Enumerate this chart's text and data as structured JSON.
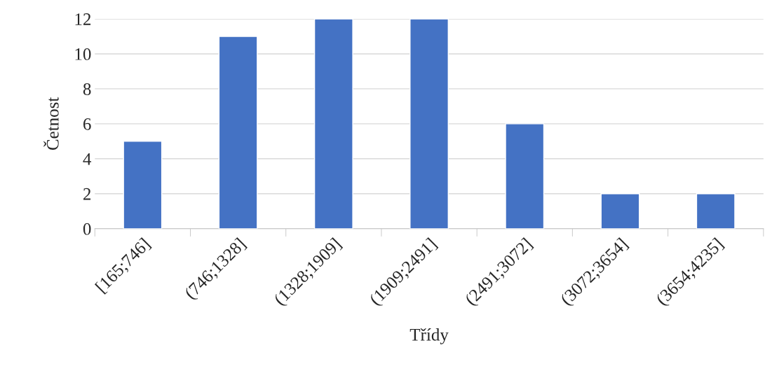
{
  "chart_data": {
    "type": "bar",
    "xlabel": "Třídy",
    "ylabel": "Četnost",
    "categories": [
      "[165;746]",
      "(746;1328]",
      "(1328;1909]",
      "(1909;2491]",
      "(2491;3072]",
      "(3072;3654]",
      "(3654;4235]"
    ],
    "values": [
      5,
      11,
      12,
      12,
      6,
      2,
      2
    ],
    "color": "#4472c4",
    "ylim": [
      0,
      12
    ],
    "yticks": [
      0,
      2,
      4,
      6,
      8,
      10,
      12
    ],
    "grid": "y",
    "legend": false
  }
}
